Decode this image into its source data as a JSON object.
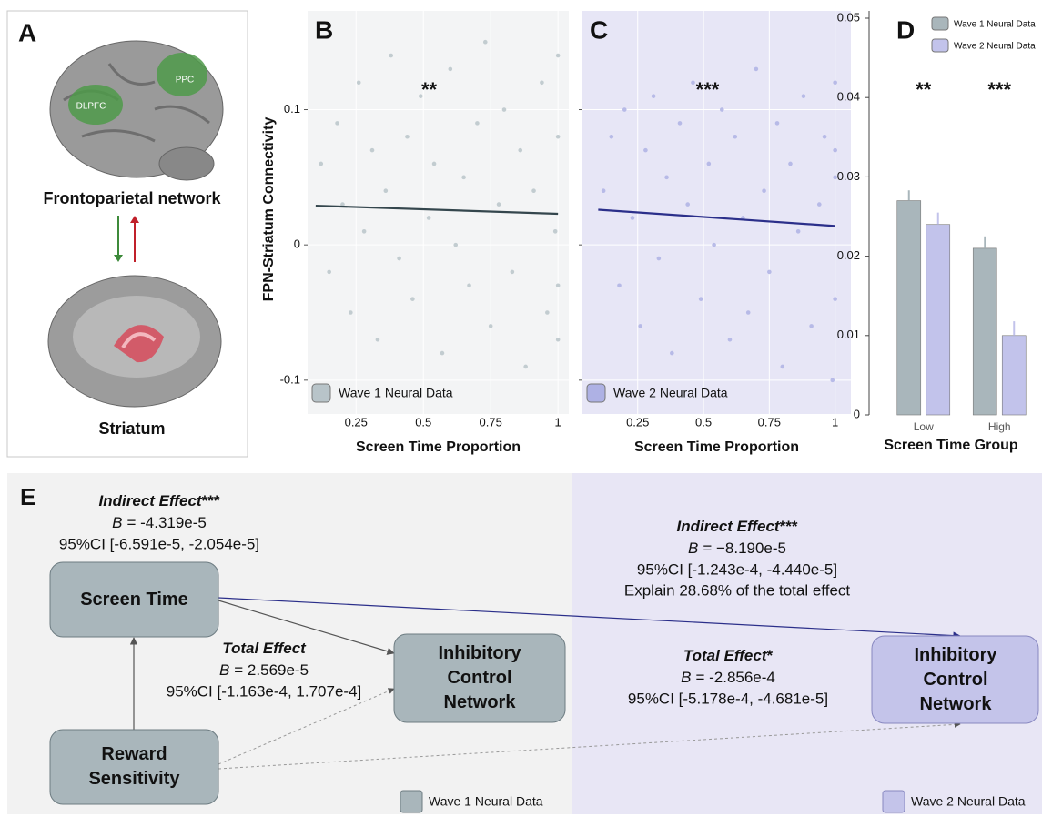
{
  "panel_a": {
    "label": "A",
    "regions": [
      "DLPFC",
      "PPC"
    ],
    "network": "Frontoparietal network",
    "target": "Striatum"
  },
  "chart_data": [
    {
      "type": "scatter",
      "label": "B",
      "ylabel": "FPN-Striatum Connectivity",
      "xlabel": "Screen Time Proportion",
      "annotation": "**",
      "xlim": [
        0.07,
        1.04
      ],
      "xticks": [
        0.25,
        0.5,
        0.75,
        1
      ],
      "ylim": [
        -0.125,
        0.173
      ],
      "yticks": [
        -0.1,
        0,
        0.1
      ],
      "grid": true,
      "background": "#f3f4f5",
      "series": [
        {
          "name": "Wave 1 Neural Data",
          "color": "#b8c4c9",
          "x": [
            0.12,
            0.15,
            0.18,
            0.2,
            0.23,
            0.26,
            0.28,
            0.31,
            0.33,
            0.36,
            0.38,
            0.41,
            0.44,
            0.46,
            0.49,
            0.52,
            0.54,
            0.57,
            0.6,
            0.62,
            0.65,
            0.67,
            0.7,
            0.73,
            0.75,
            0.78,
            0.8,
            0.83,
            0.86,
            0.88,
            0.91,
            0.94,
            0.96,
            0.99,
            1,
            1,
            1,
            1
          ],
          "values": [
            0.06,
            -0.02,
            0.09,
            0.03,
            -0.05,
            0.12,
            0.01,
            0.07,
            -0.07,
            0.04,
            0.14,
            -0.01,
            0.08,
            -0.04,
            0.11,
            0.02,
            0.06,
            -0.08,
            0.13,
            0,
            0.05,
            -0.03,
            0.09,
            0.15,
            -0.06,
            0.03,
            0.1,
            -0.02,
            0.07,
            -0.09,
            0.04,
            0.12,
            -0.05,
            0.01,
            0.14,
            -0.07,
            0.08,
            -0.03
          ]
        }
      ],
      "fit": {
        "x": [
          0.1,
          1
        ],
        "values": [
          0.029,
          0.023
        ],
        "color": "#34464d"
      }
    },
    {
      "type": "scatter",
      "label": "C",
      "xlabel": "Screen Time Proportion",
      "annotation": "***",
      "show_ytick_labels": false,
      "xlim": [
        0.04,
        1.06
      ],
      "xticks": [
        0.25,
        0.5,
        0.75,
        1
      ],
      "ylim": [
        -0.125,
        0.173
      ],
      "yticks": [
        -0.1,
        0,
        0.1
      ],
      "grid": true,
      "background": "#e7e6f6",
      "series": [
        {
          "name": "Wave 2 Neural Data",
          "color": "#aeb1e4",
          "x": [
            0.12,
            0.15,
            0.18,
            0.2,
            0.23,
            0.26,
            0.28,
            0.31,
            0.33,
            0.36,
            0.38,
            0.41,
            0.44,
            0.46,
            0.49,
            0.52,
            0.54,
            0.57,
            0.6,
            0.62,
            0.65,
            0.67,
            0.7,
            0.73,
            0.75,
            0.78,
            0.8,
            0.83,
            0.86,
            0.88,
            0.91,
            0.94,
            0.96,
            0.99,
            1,
            1,
            1,
            1
          ],
          "values": [
            0.04,
            0.08,
            -0.03,
            0.1,
            0.02,
            -0.06,
            0.07,
            0.11,
            -0.01,
            0.05,
            -0.08,
            0.09,
            0.03,
            0.12,
            -0.04,
            0.06,
            0,
            0.1,
            -0.07,
            0.08,
            0.02,
            -0.05,
            0.13,
            0.04,
            -0.02,
            0.09,
            -0.09,
            0.06,
            0.01,
            0.11,
            -0.06,
            0.03,
            0.08,
            -0.1,
            0.12,
            0.05,
            -0.04,
            0.07
          ]
        }
      ],
      "fit": {
        "x": [
          0.1,
          1
        ],
        "values": [
          0.026,
          0.014
        ],
        "color": "#2b2f8a"
      }
    },
    {
      "type": "bar",
      "label": "D",
      "xlabel": "Screen Time Group",
      "categories": [
        "Low",
        "High"
      ],
      "annotations": [
        "**",
        "***"
      ],
      "ylim": [
        0,
        0.05
      ],
      "yticks": [
        0,
        0.01,
        0.02,
        0.03,
        0.04,
        0.05
      ],
      "series": [
        {
          "name": "Wave 1 Neural Data",
          "color": "#a9b6bb",
          "values": [
            0.027,
            0.021
          ],
          "errors": [
            0.0013,
            0.0015
          ]
        },
        {
          "name": "Wave 2 Neural Data",
          "color": "#c2c3eb",
          "values": [
            0.024,
            0.01
          ],
          "errors": [
            0.0015,
            0.0018
          ]
        }
      ]
    }
  ],
  "panel_e": {
    "label": "E",
    "nodes": {
      "screen_time": "Screen Time",
      "reward": "Reward Sensitivity",
      "icn_wave1": "Inhibitory Control Network",
      "icn_wave2": "Inhibitory Control Network"
    },
    "wave1": {
      "indirect": {
        "title": "Indirect Effect",
        "stars": "***",
        "b_symbol": "B",
        "b": "= -4.319e-5",
        "ci": "95%CI [-6.591e-5, -2.054e-5]"
      },
      "total": {
        "title": "Total Effect",
        "b_symbol": "B",
        "b": "= 2.569e-5",
        "ci": "95%CI [-1.163e-4, 1.707e-4]"
      },
      "legend": "Wave 1 Neural Data"
    },
    "wave2": {
      "indirect": {
        "title": "Indirect Effect",
        "stars": "***",
        "b_symbol": "B",
        "b": "= −8.190e-5",
        "ci": "95%CI [-1.243e-4, -4.440e-5]",
        "explain": "Explain 28.68% of the total effect"
      },
      "total": {
        "title": "Total Effect",
        "stars": "*",
        "b_symbol": "B",
        "b": "= -2.856e-4",
        "ci": "95%CI [-5.178e-4, -4.681e-5]"
      },
      "legend": "Wave 2 Neural Data"
    }
  }
}
